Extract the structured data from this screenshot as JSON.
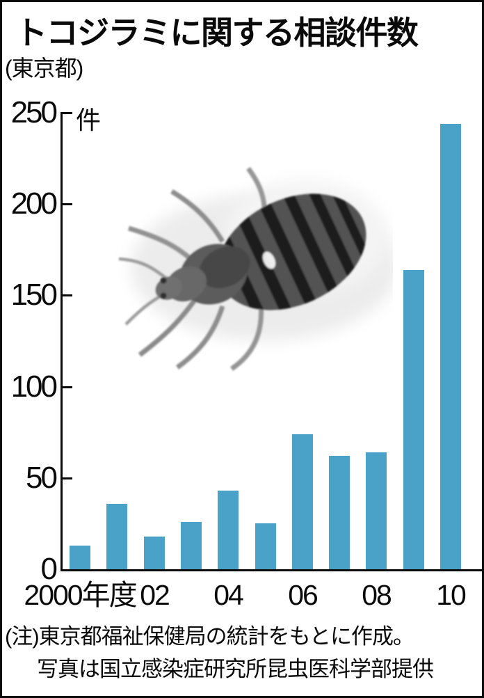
{
  "header": {
    "title": "トコジラミに関する相談件数",
    "subtitle": "(東京都)"
  },
  "chart_data": {
    "type": "bar",
    "title": "トコジラミに関する相談件数",
    "region": "東京都",
    "unit_label": "件",
    "categories": [
      "2000",
      "2001",
      "2002",
      "2003",
      "2004",
      "2005",
      "2006",
      "2007",
      "2008",
      "2009",
      "2010"
    ],
    "values": [
      13,
      36,
      18,
      26,
      43,
      25,
      74,
      62,
      64,
      164,
      244
    ],
    "x_axis_labels": [
      {
        "text": "2000年度",
        "bar_index": 0
      },
      {
        "text": "02",
        "bar_index": 2
      },
      {
        "text": "04",
        "bar_index": 4
      },
      {
        "text": "06",
        "bar_index": 6
      },
      {
        "text": "08",
        "bar_index": 8
      },
      {
        "text": "10",
        "bar_index": 10
      }
    ],
    "y_ticks": [
      0,
      50,
      100,
      150,
      200,
      250
    ],
    "ylim": [
      0,
      250
    ],
    "xlabel": "年度",
    "ylabel": "件",
    "bar_color": "#4aa2c8",
    "grid": false,
    "legend_position": "none"
  },
  "footer": {
    "note_line1": "(注)東京都福祉保健局の統計をもとに作成。",
    "note_line2": "写真は国立感染症研究所昆虫医科学部提供"
  }
}
